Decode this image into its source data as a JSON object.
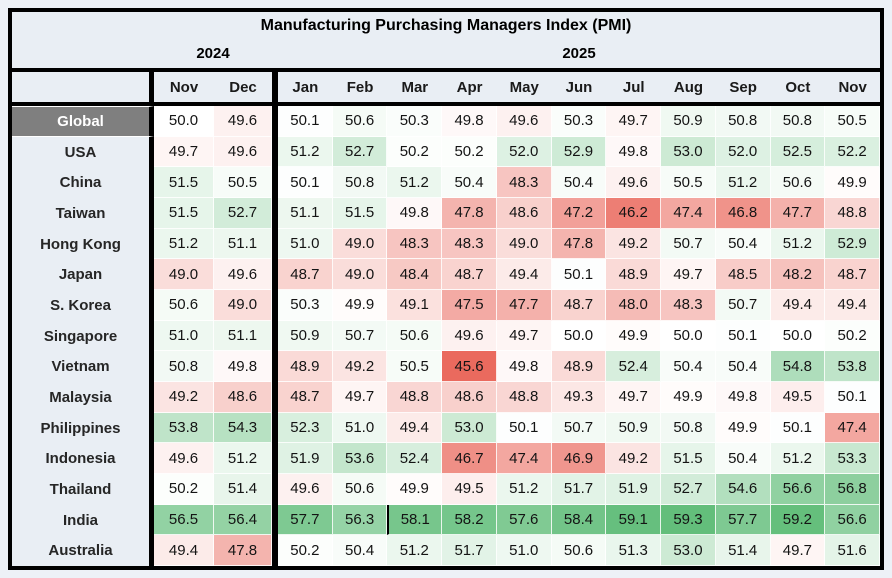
{
  "chart_data": {
    "type": "heatmap",
    "title": "Manufacturing Purchasing Managers Index (PMI)",
    "year_groups": [
      {
        "label": "2024",
        "span": 2
      },
      {
        "label": "2025",
        "span": 11
      }
    ],
    "columns": [
      "Nov",
      "Dec",
      "Jan",
      "Feb",
      "Mar",
      "Apr",
      "May",
      "Jun",
      "Jul",
      "Aug",
      "Sep",
      "Oct",
      "Nov"
    ],
    "scale": {
      "min": 45.6,
      "mid": 50,
      "max": 59.3
    },
    "rows": [
      {
        "label": "Global",
        "values": [
          50.0,
          49.6,
          50.1,
          50.6,
          50.3,
          49.8,
          49.6,
          50.3,
          49.7,
          50.9,
          50.8,
          50.8,
          50.5
        ]
      },
      {
        "label": "USA",
        "values": [
          49.7,
          49.6,
          51.2,
          52.7,
          50.2,
          50.2,
          52.0,
          52.9,
          49.8,
          53.0,
          52.0,
          52.5,
          52.2
        ]
      },
      {
        "label": "China",
        "values": [
          51.5,
          50.5,
          50.1,
          50.8,
          51.2,
          50.4,
          48.3,
          50.4,
          49.6,
          50.5,
          51.2,
          50.6,
          49.9
        ]
      },
      {
        "label": "Taiwan",
        "values": [
          51.5,
          52.7,
          51.1,
          51.5,
          49.8,
          47.8,
          48.6,
          47.2,
          46.2,
          47.4,
          46.8,
          47.7,
          48.8
        ]
      },
      {
        "label": "Hong Kong",
        "values": [
          51.2,
          51.1,
          51.0,
          49.0,
          48.3,
          48.3,
          49.0,
          47.8,
          49.2,
          50.7,
          50.4,
          51.2,
          52.9
        ]
      },
      {
        "label": "Japan",
        "values": [
          49.0,
          49.6,
          48.7,
          49.0,
          48.4,
          48.7,
          49.4,
          50.1,
          48.9,
          49.7,
          48.5,
          48.2,
          48.7
        ]
      },
      {
        "label": "S. Korea",
        "values": [
          50.6,
          49.0,
          50.3,
          49.9,
          49.1,
          47.5,
          47.7,
          48.7,
          48.0,
          48.3,
          50.7,
          49.4,
          49.4
        ]
      },
      {
        "label": "Singapore",
        "values": [
          51.0,
          51.1,
          50.9,
          50.7,
          50.6,
          49.6,
          49.7,
          50.0,
          49.9,
          50.0,
          50.1,
          50.0,
          50.2
        ]
      },
      {
        "label": "Vietnam",
        "values": [
          50.8,
          49.8,
          48.9,
          49.2,
          50.5,
          45.6,
          49.8,
          48.9,
          52.4,
          50.4,
          50.4,
          54.8,
          53.8
        ]
      },
      {
        "label": "Malaysia",
        "values": [
          49.2,
          48.6,
          48.7,
          49.7,
          48.8,
          48.6,
          48.8,
          49.3,
          49.7,
          49.9,
          49.8,
          49.5,
          50.1
        ]
      },
      {
        "label": "Philippines",
        "values": [
          53.8,
          54.3,
          52.3,
          51.0,
          49.4,
          53.0,
          50.1,
          50.7,
          50.9,
          50.8,
          49.9,
          50.1,
          47.4
        ]
      },
      {
        "label": "Indonesia",
        "values": [
          49.6,
          51.2,
          51.9,
          53.6,
          52.4,
          46.7,
          47.4,
          46.9,
          49.2,
          51.5,
          50.4,
          51.2,
          53.3
        ]
      },
      {
        "label": "Thailand",
        "values": [
          50.2,
          51.4,
          49.6,
          50.6,
          49.9,
          49.5,
          51.2,
          51.7,
          51.9,
          52.7,
          54.6,
          56.6,
          56.8
        ]
      },
      {
        "label": "India",
        "values": [
          56.5,
          56.4,
          57.7,
          56.3,
          58.1,
          58.2,
          57.6,
          58.4,
          59.1,
          59.3,
          57.7,
          59.2,
          56.6
        ]
      },
      {
        "label": "Australia",
        "values": [
          49.4,
          47.8,
          50.2,
          50.4,
          51.2,
          51.7,
          51.0,
          50.6,
          51.3,
          53.0,
          51.4,
          49.7,
          51.6
        ]
      }
    ],
    "artifact": {
      "row_label": "India",
      "value_index": 4
    }
  },
  "colors": {
    "scale_min_color": "#ea6a5e",
    "scale_mid_color": "#ffffff",
    "scale_max_color": "#63be7b",
    "header_bg": "#e9eef4",
    "global_row_bg": "#7f7f7f",
    "global_row_text": "#ffffff",
    "border_color": "#000000",
    "page_bg": "#edf1f7"
  }
}
